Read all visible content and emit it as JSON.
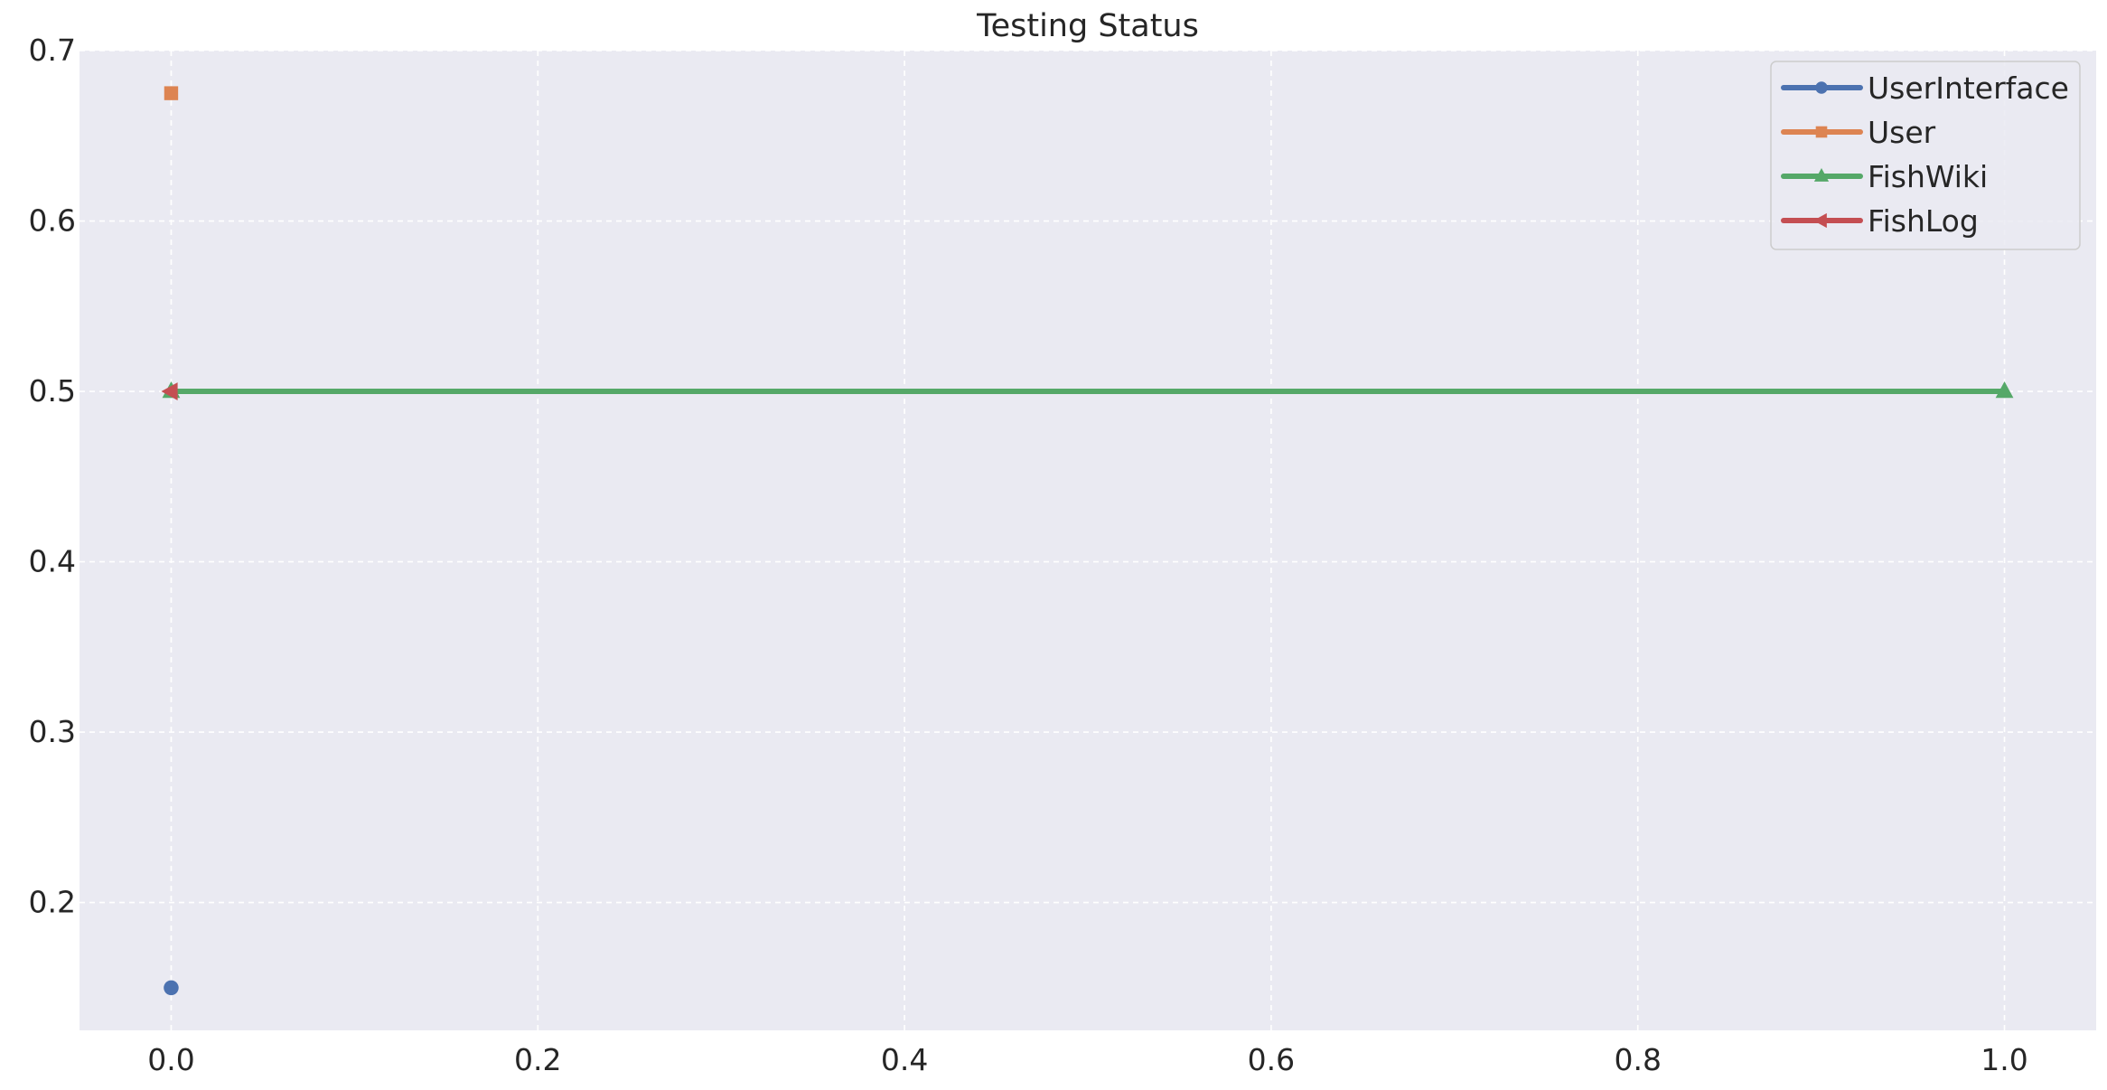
{
  "chart_data": {
    "type": "line",
    "title": "Testing Status",
    "xlabel": "",
    "ylabel": "",
    "xlim": [
      -0.05,
      1.05
    ],
    "ylim": [
      0.125,
      0.7
    ],
    "xticks": [
      "0.0",
      "0.2",
      "0.4",
      "0.6",
      "0.8",
      "1.0"
    ],
    "yticks": [
      "0.2",
      "0.3",
      "0.4",
      "0.5",
      "0.6",
      "0.7"
    ],
    "grid": true,
    "grid_style": "dashed",
    "legend_position": "top-right",
    "series": [
      {
        "name": "UserInterface",
        "x": [
          0
        ],
        "y": [
          0.15
        ],
        "color": "#4c72b0",
        "marker": "circle"
      },
      {
        "name": "User",
        "x": [
          0
        ],
        "y": [
          0.675
        ],
        "color": "#dd8452",
        "marker": "square"
      },
      {
        "name": "FishWiki",
        "x": [
          0,
          1
        ],
        "y": [
          0.5,
          0.5
        ],
        "color": "#55a868",
        "marker": "triangle-up"
      },
      {
        "name": "FishLog",
        "x": [
          0
        ],
        "y": [
          0.5
        ],
        "color": "#c44e52",
        "marker": "triangle-left"
      }
    ],
    "background_color": "#eaeaf2",
    "grid_color": "#ffffff"
  }
}
